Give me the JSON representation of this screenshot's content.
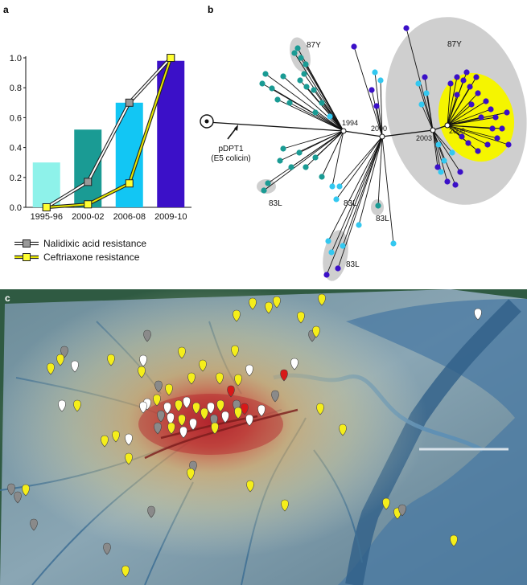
{
  "panels": {
    "a": "a",
    "b": "b",
    "c": "c"
  },
  "chart_data": {
    "type": "bar",
    "categories": [
      "1995-96",
      "2000-02",
      "2006-08",
      "2009-10"
    ],
    "values": [
      0.3,
      0.52,
      0.7,
      0.98
    ],
    "bar_colors": [
      "#8ef2ea",
      "#1a9b94",
      "#12c6f4",
      "#3b10c8"
    ],
    "ylim": [
      0,
      1.0
    ],
    "yticks": [
      "0.0",
      "0.2",
      "0.4",
      "0.6",
      "0.8",
      "1.0"
    ],
    "series": [
      {
        "name": "Nalidixic acid resistance",
        "values": [
          0.0,
          0.17,
          0.7,
          1.0
        ],
        "line_color": "#777777",
        "marker_color": "#999999"
      },
      {
        "name": "Ceftriaxone resistance",
        "values": [
          0.0,
          0.02,
          0.16,
          1.0
        ],
        "line_color": "#e8e800",
        "marker_color": "#ffff33"
      }
    ],
    "legend_position": "bottom"
  },
  "tree": {
    "plasmid_label_1": "pDPT1",
    "plasmid_label_2": "(E5 colicin)",
    "clade_labels": [
      "87Y",
      "87Y",
      "83L",
      "83L",
      "83L",
      "83L"
    ],
    "years": [
      "1994",
      "2000",
      "2003",
      "2006"
    ],
    "colors": {
      "teal": "#1a9b94",
      "light_blue": "#33c8f0",
      "dark_blue": "#3b10c8",
      "highlight_yellow": "#f5f500",
      "highlight_grey": "#cfcfcf"
    }
  },
  "map": {
    "colors": {
      "water": "#3f6f95",
      "heat_red": "#c0302f",
      "heat_yellow": "#f5d66b",
      "pin_yellow": "#f5ee1a",
      "pin_grey": "#8a8a8a",
      "pin_white": "#ffffff",
      "pin_red": "#d81818"
    }
  }
}
